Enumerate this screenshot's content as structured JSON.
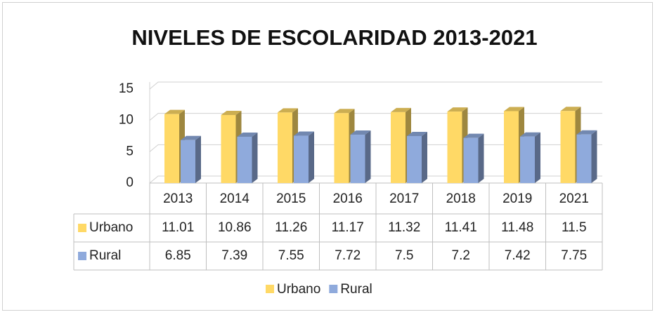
{
  "chart_data": {
    "type": "bar3d",
    "title": "NIVELES DE ESCOLARIDAD 2013-2021",
    "categories": [
      "2013",
      "2014",
      "2015",
      "2016",
      "2017",
      "2018",
      "2019",
      "2021"
    ],
    "series": [
      {
        "name": "Urbano",
        "color": "#ffd966",
        "values": [
          11.01,
          10.86,
          11.26,
          11.17,
          11.32,
          11.41,
          11.48,
          11.5
        ]
      },
      {
        "name": "Rural",
        "color": "#8faadc",
        "values": [
          6.85,
          7.39,
          7.55,
          7.72,
          7.5,
          7.2,
          7.42,
          7.75
        ]
      }
    ],
    "ylim": [
      0,
      15
    ],
    "yticks": [
      0,
      5,
      10,
      15
    ],
    "grid": true,
    "legend": "bottom",
    "data_table": true
  }
}
